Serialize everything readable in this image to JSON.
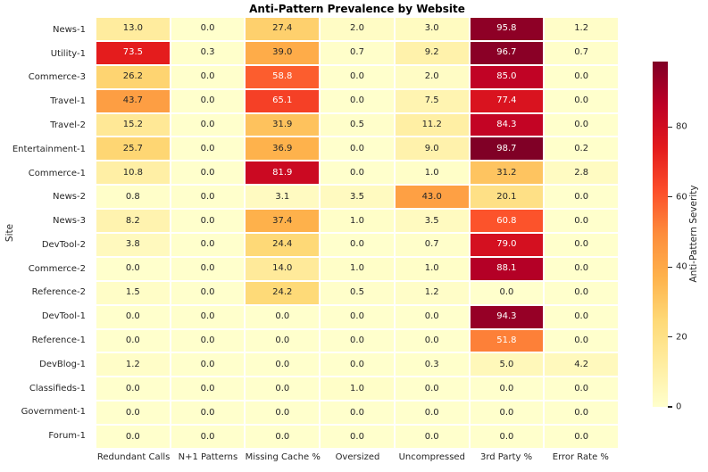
{
  "chart_data": {
    "type": "heatmap",
    "title": "Anti-Pattern Prevalence by Website",
    "ylabel": "Site",
    "colorbar_label": "Anti-Pattern Severity",
    "colorbar_ticks": [
      0,
      20,
      40,
      60,
      80
    ],
    "vmin": 0.0,
    "vmax": 98.7,
    "colormap": "YlOrRd",
    "colormap_stops": [
      "#ffffcc",
      "#ffeda0",
      "#fed976",
      "#feb24c",
      "#fd8d3c",
      "#fc4e2a",
      "#e31a1c",
      "#bd0026",
      "#800026"
    ],
    "annotation_text_colors": {
      "light_cell": "#262626",
      "dark_cell": "#ffffff"
    },
    "grid_line_color": "#ffffff",
    "legend_position": "right",
    "columns": [
      "Redundant Calls",
      "N+1 Patterns",
      "Missing Cache %",
      "Oversized",
      "Uncompressed",
      "3rd Party %",
      "Error Rate %"
    ],
    "rows": [
      "News-1",
      "Utility-1",
      "Commerce-3",
      "Travel-1",
      "Travel-2",
      "Entertainment-1",
      "Commerce-1",
      "News-2",
      "News-3",
      "DevTool-2",
      "Commerce-2",
      "Reference-2",
      "DevTool-1",
      "Reference-1",
      "DevBlog-1",
      "Classifieds-1",
      "Government-1",
      "Forum-1"
    ],
    "values": [
      [
        13.0,
        0.0,
        27.4,
        2.0,
        3.0,
        95.8,
        1.2
      ],
      [
        73.5,
        0.3,
        39.0,
        0.7,
        9.2,
        96.7,
        0.7
      ],
      [
        26.2,
        0.0,
        58.8,
        0.0,
        2.0,
        85.0,
        0.0
      ],
      [
        43.7,
        0.0,
        65.1,
        0.0,
        7.5,
        77.4,
        0.0
      ],
      [
        15.2,
        0.0,
        31.9,
        0.5,
        11.2,
        84.3,
        0.0
      ],
      [
        25.7,
        0.0,
        36.9,
        0.0,
        9.0,
        98.7,
        0.2
      ],
      [
        10.8,
        0.0,
        81.9,
        0.0,
        1.0,
        31.2,
        2.8
      ],
      [
        0.8,
        0.0,
        3.1,
        3.5,
        43.0,
        20.1,
        0.0
      ],
      [
        8.2,
        0.0,
        37.4,
        1.0,
        3.5,
        60.8,
        0.0
      ],
      [
        3.8,
        0.0,
        24.4,
        0.0,
        0.7,
        79.0,
        0.0
      ],
      [
        0.0,
        0.0,
        14.0,
        1.0,
        1.0,
        88.1,
        0.0
      ],
      [
        1.5,
        0.0,
        24.2,
        0.5,
        1.2,
        0.0,
        0.0
      ],
      [
        0.0,
        0.0,
        0.0,
        0.0,
        0.0,
        94.3,
        0.0
      ],
      [
        0.0,
        0.0,
        0.0,
        0.0,
        0.0,
        51.8,
        0.0
      ],
      [
        1.2,
        0.0,
        0.0,
        0.0,
        0.3,
        5.0,
        4.2
      ],
      [
        0.0,
        0.0,
        0.0,
        1.0,
        0.0,
        0.0,
        0.0
      ],
      [
        0.0,
        0.0,
        0.0,
        0.0,
        0.0,
        0.0,
        0.0
      ],
      [
        0.0,
        0.0,
        0.0,
        0.0,
        0.0,
        0.0,
        0.0
      ]
    ]
  }
}
